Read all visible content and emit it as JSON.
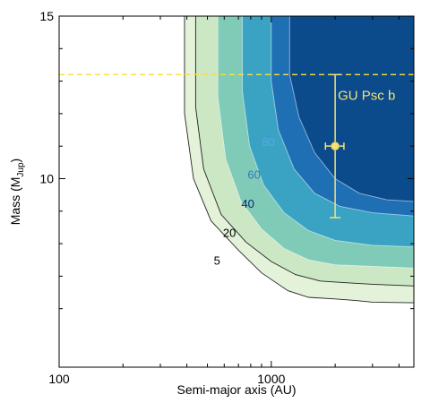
{
  "chart_data": {
    "type": "area",
    "xlabel": "Semi-major axis (AU)",
    "ylabel_main": "Mass (M",
    "ylabel_sub": "Jup",
    "ylabel_close": ")",
    "x_scale": "log",
    "xlim": [
      100,
      4700
    ],
    "ylim": [
      4.2,
      15
    ],
    "x_ticks": [
      {
        "value": 100,
        "label": "100"
      },
      {
        "value": 1000,
        "label": "1000"
      }
    ],
    "y_ticks": [
      {
        "value": 10,
        "label": "10"
      },
      {
        "value": 15,
        "label": "15"
      }
    ],
    "grid": false,
    "contour_levels": [
      {
        "label": "5",
        "color": "#000000",
        "fill": "#e4f2da",
        "points": [
          [
            390,
            15
          ],
          [
            390,
            12
          ],
          [
            430,
            10
          ],
          [
            520,
            8.7
          ],
          [
            700,
            7.8
          ],
          [
            900,
            7.1
          ],
          [
            1200,
            6.55
          ],
          [
            1500,
            6.35
          ],
          [
            2000,
            6.3
          ],
          [
            2500,
            6.25
          ],
          [
            3000,
            6.2
          ],
          [
            4700,
            6.18
          ]
        ]
      },
      {
        "label": "20",
        "color": "#000000",
        "fill": "#cbe7c4",
        "points": [
          [
            440,
            15
          ],
          [
            440,
            12.2
          ],
          [
            480,
            10.3
          ],
          [
            580,
            8.9
          ],
          [
            760,
            8.05
          ],
          [
            1000,
            7.45
          ],
          [
            1300,
            7.05
          ],
          [
            1700,
            6.85
          ],
          [
            2200,
            6.8
          ],
          [
            3000,
            6.75
          ],
          [
            4700,
            6.7
          ]
        ]
      },
      {
        "label": "40",
        "color": "#0b2a6b",
        "fill": "#7fcbb8",
        "points": [
          [
            560,
            15
          ],
          [
            560,
            12.5
          ],
          [
            610,
            10.6
          ],
          [
            720,
            9.3
          ],
          [
            900,
            8.45
          ],
          [
            1150,
            7.85
          ],
          [
            1500,
            7.5
          ],
          [
            2000,
            7.35
          ],
          [
            3000,
            7.3
          ],
          [
            4700,
            7.25
          ]
        ]
      },
      {
        "label": "60",
        "color": "#2e78c6",
        "fill": "#3aa3c4",
        "points": [
          [
            730,
            15
          ],
          [
            730,
            12.7
          ],
          [
            790,
            11.0
          ],
          [
            920,
            9.8
          ],
          [
            1150,
            8.95
          ],
          [
            1500,
            8.4
          ],
          [
            2000,
            8.1
          ],
          [
            3000,
            7.95
          ],
          [
            4700,
            7.9
          ]
        ]
      },
      {
        "label": "80",
        "color": "#58a8e6",
        "fill": "#1f6fb5",
        "points": [
          [
            1000,
            15
          ],
          [
            1000,
            13.0
          ],
          [
            1080,
            11.5
          ],
          [
            1280,
            10.3
          ],
          [
            1600,
            9.55
          ],
          [
            2100,
            9.15
          ],
          [
            3000,
            8.95
          ],
          [
            4700,
            8.85
          ]
        ]
      },
      {
        "label": "",
        "color": "#08468a",
        "fill": "#0b4a8b",
        "points": [
          [
            1220,
            15
          ],
          [
            1220,
            13.2
          ],
          [
            1350,
            11.9
          ],
          [
            1600,
            10.8
          ],
          [
            2000,
            10.0
          ],
          [
            2600,
            9.55
          ],
          [
            3500,
            9.35
          ],
          [
            4700,
            9.3
          ]
        ]
      }
    ],
    "contour_labels": [
      {
        "text": "80",
        "x": 970,
        "y": 11.1,
        "color": "#58a8e6"
      },
      {
        "text": "60",
        "x": 830,
        "y": 10.1,
        "color": "#2e78c6"
      },
      {
        "text": "40",
        "x": 775,
        "y": 9.2,
        "color": "#0b2a6b"
      },
      {
        "text": "20",
        "x": 635,
        "y": 8.3,
        "color": "#000000"
      },
      {
        "text": "5",
        "x": 555,
        "y": 7.45,
        "color": "#000000"
      }
    ],
    "reference_line": {
      "y": 13.2,
      "color": "#f7e03a"
    },
    "planet": {
      "label": "GU Psc b",
      "x": 2000,
      "y": 11.0,
      "x_err": [
        1800,
        2200
      ],
      "y_err": [
        8.8,
        13.2
      ],
      "color": "#f3e27a"
    }
  }
}
